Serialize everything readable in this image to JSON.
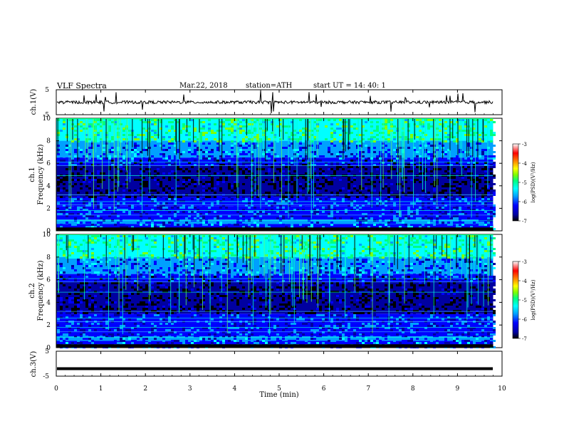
{
  "header": {
    "title": "VLF  Spectra",
    "date": "Mar.22, 2018",
    "station": "station=ATH",
    "start_ut": "start  UT  =   14: 40: 1"
  },
  "chart_data": [
    {
      "type": "line",
      "ylabel": "ch.1(V)",
      "ylim": [
        -5,
        5
      ],
      "yticks": [
        "5",
        "-5"
      ],
      "mean_level": 0,
      "xlim": [
        0,
        10
      ]
    },
    {
      "type": "heatmap",
      "ylabel_line1": "ch.1",
      "ylabel_line2": "Frequency  (kHz)",
      "ylim": [
        0,
        10
      ],
      "yticks": [
        "10",
        "8",
        "6",
        "4",
        "2",
        "0"
      ],
      "xlim": [
        0,
        10
      ],
      "data_extent_x": [
        0,
        9.8
      ],
      "colorbar": {
        "label": "log(PSD)(V²/Hz)",
        "ticks": [
          "-3",
          "-4",
          "-5",
          "-6",
          "-7"
        ],
        "range": [
          -7,
          -3
        ]
      }
    },
    {
      "type": "heatmap",
      "ylabel_line1": "ch.2",
      "ylabel_line2": "Frequency  (kHz)",
      "ylim": [
        0,
        10
      ],
      "yticks": [
        "10",
        "8",
        "6",
        "4",
        "2",
        "0"
      ],
      "xlim": [
        0,
        10
      ],
      "data_extent_x": [
        0,
        9.8
      ],
      "colorbar": {
        "label": "log(PSD)(V²/Hz)",
        "ticks": [
          "-3",
          "-4",
          "-5",
          "-6",
          "-7"
        ],
        "range": [
          -7,
          -3
        ]
      }
    },
    {
      "type": "line",
      "ylabel": "ch.3(V)",
      "ylim": [
        -5,
        5
      ],
      "yticks": [
        "5",
        "-5"
      ],
      "mean_level": -2,
      "xlim": [
        0,
        10
      ],
      "xlabel": "Time  (min)",
      "xticks": [
        "0",
        "1",
        "2",
        "3",
        "4",
        "5",
        "6",
        "7",
        "8",
        "9",
        "10"
      ]
    }
  ],
  "colors": {
    "trace": "#000000",
    "colormap": [
      "#000000",
      "#0000a0",
      "#0000ff",
      "#00a0ff",
      "#00ffff",
      "#00ff80",
      "#80ff00",
      "#ffff00",
      "#ff8000",
      "#ff0000",
      "#ffffff"
    ]
  }
}
